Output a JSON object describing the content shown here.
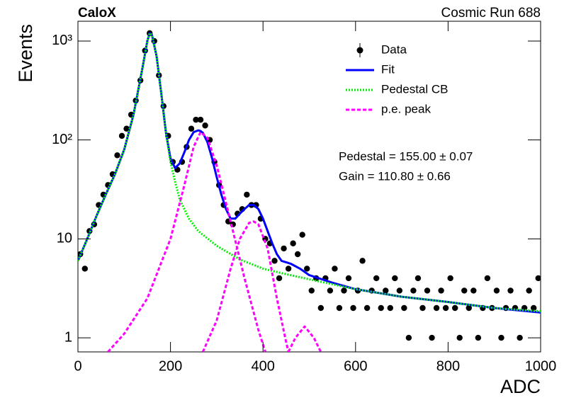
{
  "chart_data": {
    "type": "scatter",
    "title": "CaloX",
    "subtitle": "Cosmic Run 688",
    "x_label": "ADC",
    "y_label": "Events",
    "log_y": true,
    "legend": "upper right",
    "xlim": [
      0,
      1000
    ],
    "ylim": [
      0.72,
      1585
    ],
    "xticks": [
      0,
      200,
      400,
      600,
      800,
      1000
    ],
    "yticks": [
      1,
      10,
      {
        "value": 100,
        "label": "10²"
      },
      {
        "value": 1000,
        "label": "10³"
      }
    ],
    "annotations": [
      "Pedestal = 155.00 ± 0.07",
      "Gain = 110.80 ± 0.66"
    ],
    "series": [
      {
        "name": "Data",
        "color": "#000000",
        "style": "points",
        "x": [
          5,
          15,
          25,
          35,
          45,
          55,
          65,
          75,
          85,
          95,
          105,
          115,
          125,
          135,
          145,
          155,
          165,
          175,
          185,
          195,
          205,
          215,
          225,
          235,
          245,
          255,
          265,
          275,
          285,
          295,
          305,
          315,
          325,
          335,
          345,
          355,
          365,
          375,
          385,
          395,
          405,
          415,
          425,
          435,
          445,
          455,
          465,
          475,
          485,
          495,
          505,
          515,
          525,
          535,
          545,
          555,
          565,
          575,
          585,
          595,
          605,
          615,
          625,
          635,
          645,
          655,
          665,
          675,
          685,
          695,
          705,
          715,
          725,
          735,
          745,
          755,
          765,
          775,
          785,
          795,
          805,
          815,
          825,
          835,
          845,
          855,
          865,
          875,
          885,
          895,
          905,
          915,
          925,
          935,
          945,
          955,
          965,
          975,
          985,
          995
        ],
        "values": [
          7,
          5,
          12,
          14,
          22,
          28,
          35,
          45,
          70,
          110,
          130,
          180,
          250,
          400,
          800,
          1200,
          1000,
          450,
          220,
          110,
          60,
          50,
          60,
          85,
          130,
          160,
          160,
          140,
          100,
          60,
          35,
          22,
          15,
          14,
          18,
          20,
          28,
          22,
          22,
          16,
          10,
          9,
          6,
          4,
          8,
          5,
          9,
          7,
          11,
          5,
          3,
          4,
          2,
          4,
          3,
          5,
          2,
          3,
          4,
          2,
          3,
          6,
          2,
          3,
          4,
          2,
          3,
          2,
          4,
          3,
          2,
          1,
          3,
          4,
          2,
          3,
          1,
          2,
          3,
          2,
          4,
          2,
          1,
          3,
          2,
          3,
          1,
          2,
          4,
          2,
          3,
          1,
          2,
          3,
          2,
          1,
          2,
          3,
          2,
          4
        ]
      },
      {
        "name": "Fit",
        "color": "#0000ff",
        "style": "solid",
        "x": [
          0,
          20,
          40,
          60,
          80,
          100,
          120,
          140,
          150,
          155,
          160,
          170,
          180,
          190,
          200,
          210,
          220,
          230,
          240,
          250,
          260,
          265,
          270,
          280,
          290,
          300,
          310,
          320,
          330,
          340,
          350,
          360,
          370,
          380,
          390,
          400,
          410,
          420,
          430,
          440,
          450,
          460,
          480,
          500,
          550,
          600,
          700,
          800,
          900,
          1000
        ],
        "values": [
          6,
          10,
          17,
          28,
          45,
          80,
          180,
          550,
          1000,
          1200,
          1150,
          700,
          300,
          120,
          65,
          52,
          58,
          75,
          100,
          120,
          125,
          123,
          118,
          95,
          65,
          42,
          28,
          20,
          16,
          16,
          18,
          20,
          22,
          22,
          20,
          16,
          12,
          9,
          7,
          6,
          5.8,
          5.6,
          5,
          4.3,
          3.6,
          3.1,
          2.6,
          2.3,
          2.0,
          1.8
        ]
      },
      {
        "name": "Pedestal CB",
        "color": "#00ee00",
        "style": "dotted",
        "x": [
          0,
          20,
          40,
          60,
          80,
          100,
          120,
          140,
          150,
          155,
          160,
          170,
          180,
          190,
          200,
          210,
          220,
          240,
          260,
          300,
          350,
          400,
          450,
          500,
          600,
          700,
          800,
          900,
          1000
        ],
        "values": [
          6,
          10,
          17,
          28,
          45,
          80,
          180,
          550,
          1000,
          1200,
          1150,
          700,
          300,
          120,
          60,
          38,
          25,
          16,
          12,
          8.5,
          6.2,
          5,
          4.4,
          3.9,
          3.1,
          2.6,
          2.3,
          2.0,
          1.85
        ]
      },
      {
        "name": "p.e. peak",
        "color": "#ff00ff",
        "style": "dashed",
        "x": [
          65,
          100,
          150,
          200,
          230,
          250,
          265,
          280,
          300,
          330,
          360,
          390,
          405,
          null,
          270,
          300,
          330,
          350,
          370,
          380,
          390,
          410,
          430,
          450,
          455,
          null,
          455,
          470,
          490,
          510,
          525
        ],
        "values": [
          0.72,
          1.1,
          2.5,
          10,
          35,
          85,
          120,
          105,
          55,
          15,
          4,
          1.2,
          0.72,
          null,
          0.72,
          1.5,
          5,
          10,
          14.5,
          15,
          14,
          8,
          2.5,
          0.9,
          0.72,
          null,
          0.72,
          1.0,
          1.3,
          1.0,
          0.72
        ]
      }
    ]
  }
}
